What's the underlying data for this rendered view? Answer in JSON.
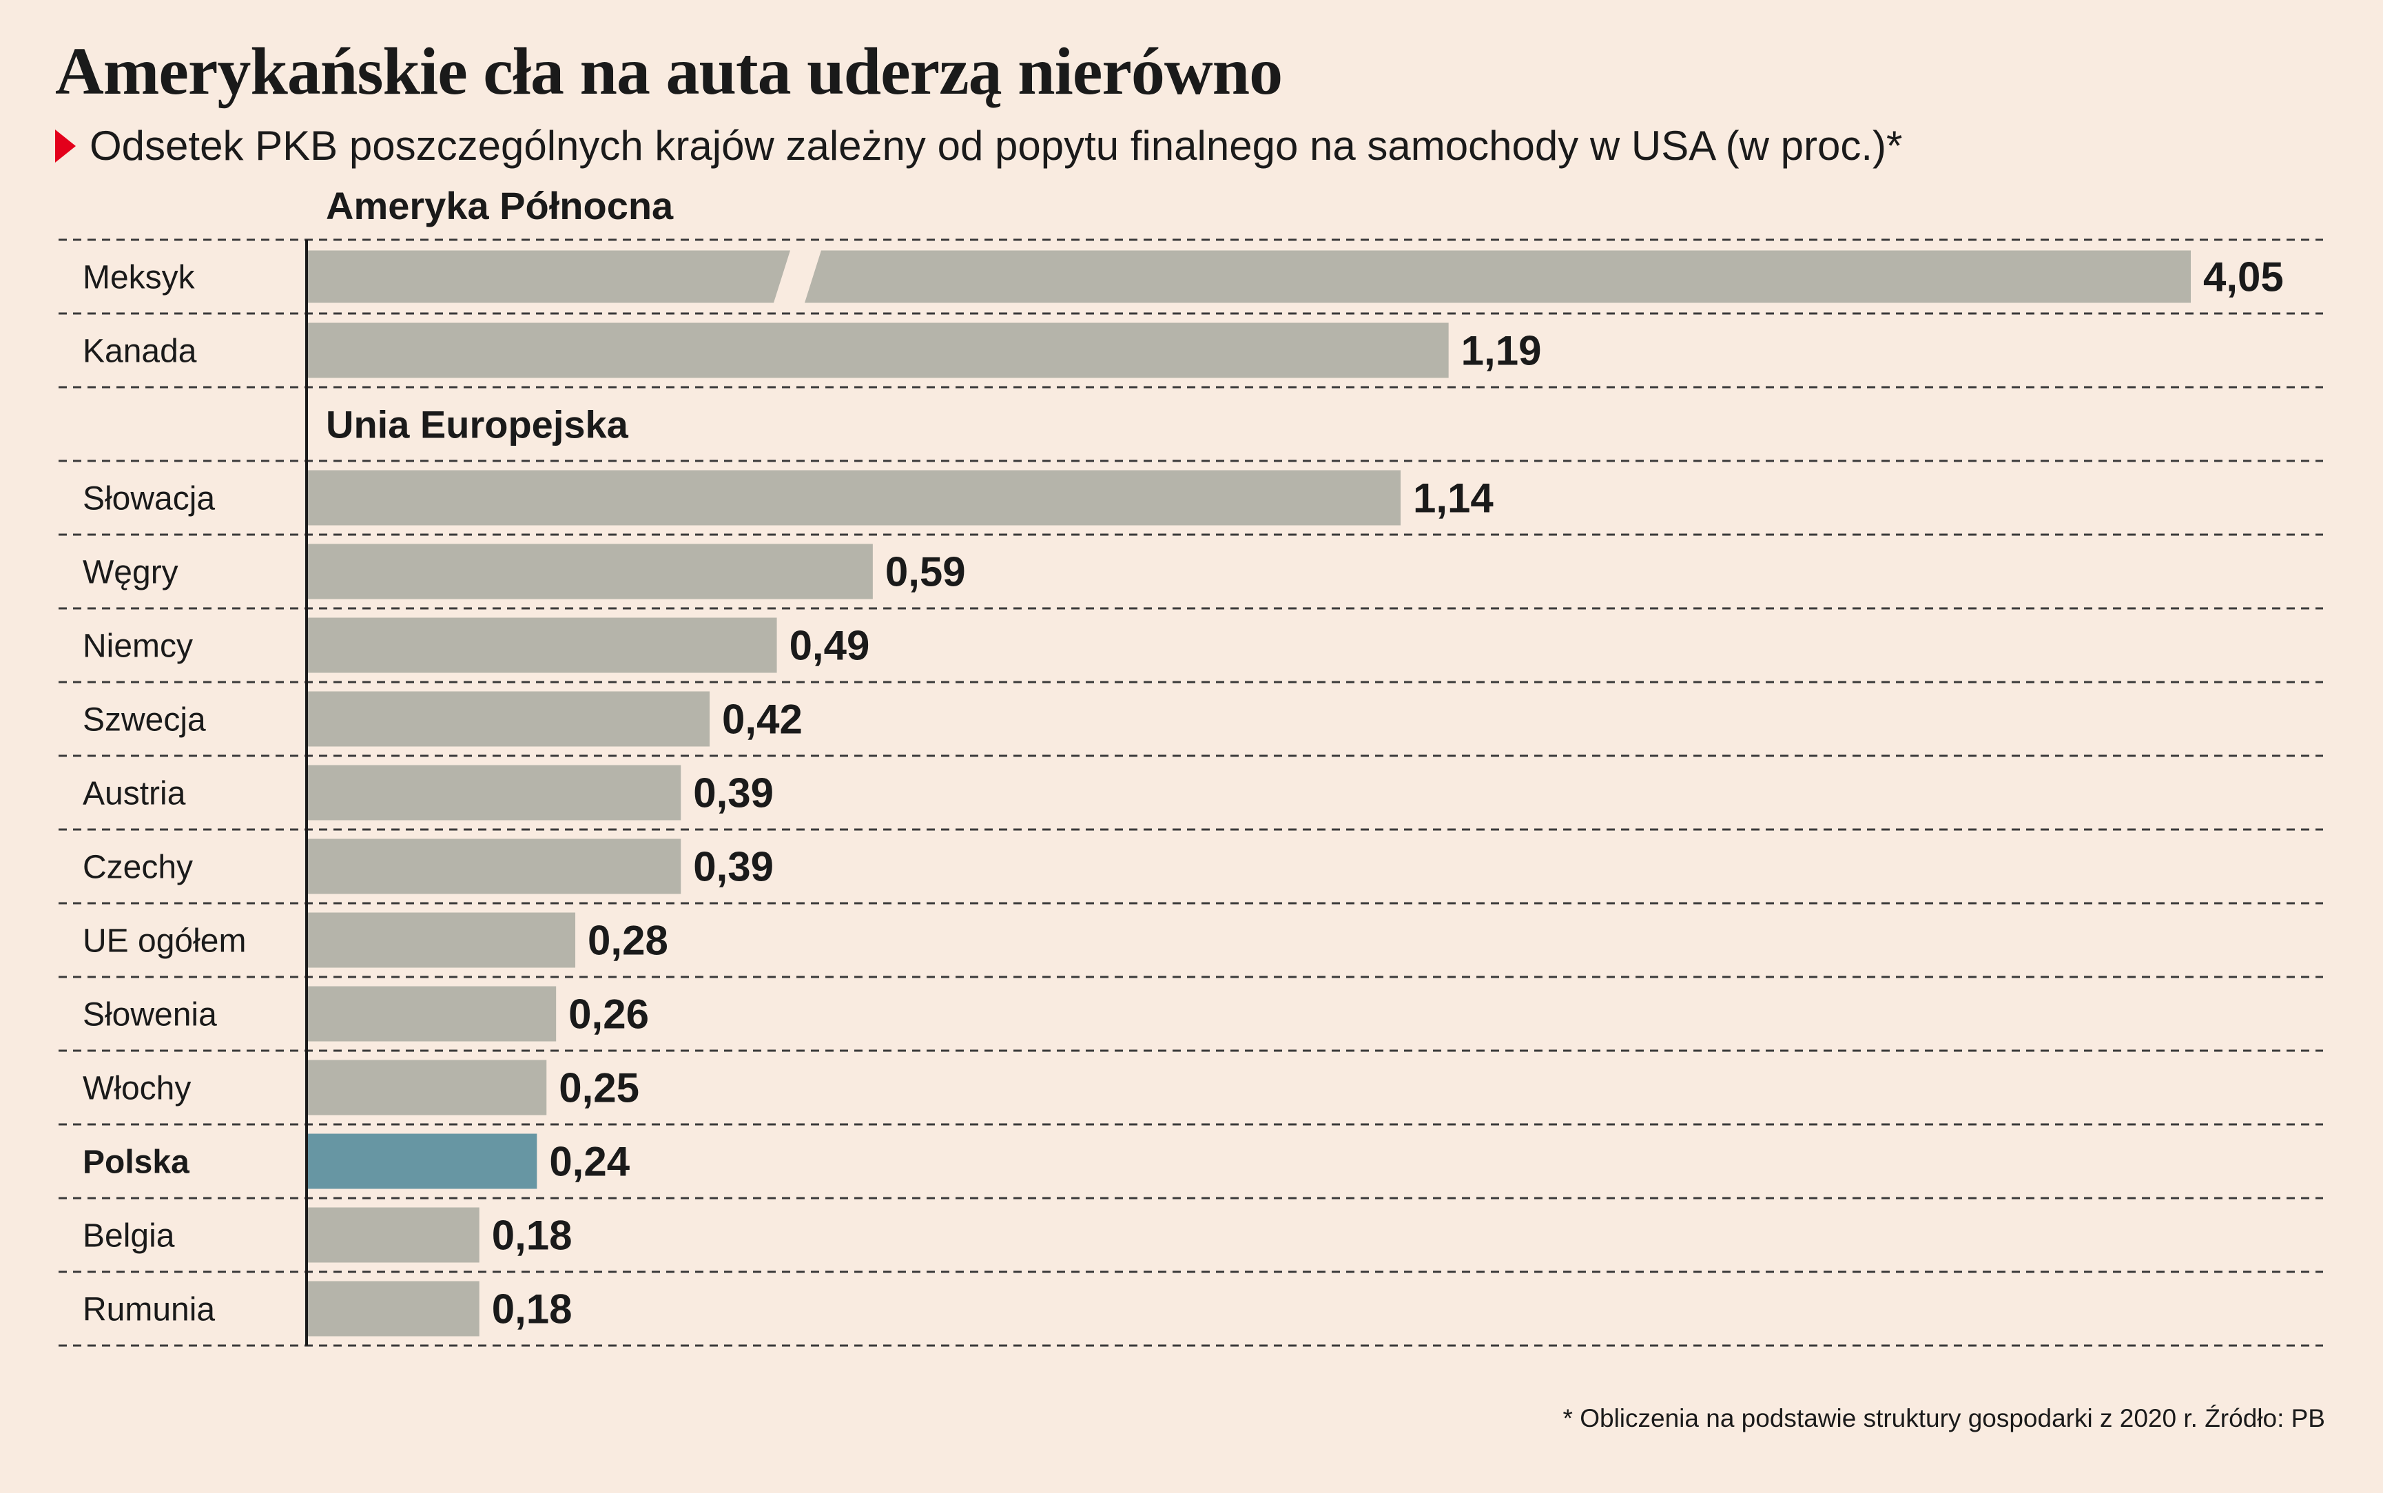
{
  "chart_data": {
    "type": "bar",
    "orientation": "horizontal",
    "title": "Amerykańskie cła na auta uderzą nierówno",
    "subtitle": "Odsetek PKB poszczególnych krajów zależny od popytu finalnego na samochody w USA (w proc.)*",
    "groups": [
      {
        "name": "Ameryka Północna",
        "categories": [
          "Meksyk",
          "Kanada"
        ],
        "values": [
          4.05,
          1.19
        ],
        "value_labels": [
          "4,05",
          "1,19"
        ]
      },
      {
        "name": "Unia Europejska",
        "categories": [
          "Słowacja",
          "Węgry",
          "Niemcy",
          "Szwecja",
          "Austria",
          "Czechy",
          "UE ogółem",
          "Słowenia",
          "Włochy",
          "Polska",
          "Belgia",
          "Rumunia"
        ],
        "values": [
          1.14,
          0.59,
          0.49,
          0.42,
          0.39,
          0.39,
          0.28,
          0.26,
          0.25,
          0.24,
          0.18,
          0.18
        ],
        "value_labels": [
          "1,14",
          "0,59",
          "0,49",
          "0,42",
          "0,39",
          "0,39",
          "0,28",
          "0,26",
          "0,25",
          "0,24",
          "0,18",
          "0,18"
        ]
      }
    ],
    "highlight": "Polska",
    "broken_axis_bar": "Meksyk",
    "colors": {
      "bar": "#b5b4aa",
      "highlight_bar": "#6796a3",
      "background": "#f9ebe0",
      "grid": "#3a3a3a",
      "marker": "#e3001b"
    },
    "footnote": "* Obliczenia na podstawie struktury gospodarki z 2020 r. Źródło: PB",
    "grid": "dashed row separators",
    "xlim": [
      0,
      1.4
    ]
  }
}
